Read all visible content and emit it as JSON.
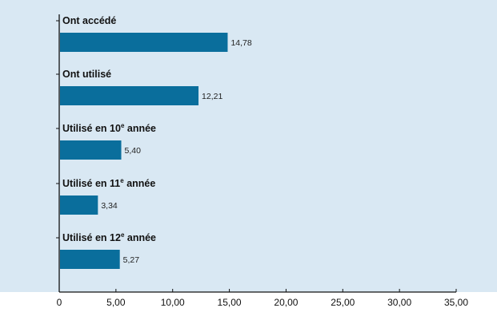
{
  "chart_data": {
    "type": "bar",
    "orientation": "horizontal",
    "title": "",
    "xlabel": "",
    "ylabel": "",
    "categories": [
      {
        "text": "Ont accédé",
        "sup": "",
        "rest": ""
      },
      {
        "text": "Ont utilisé",
        "sup": "",
        "rest": ""
      },
      {
        "text": "Utilisé en 10",
        "sup": "e",
        "rest": " année"
      },
      {
        "text": "Utilisé en 11",
        "sup": "e",
        "rest": " année"
      },
      {
        "text": "Utilisé en 12",
        "sup": "e",
        "rest": " année"
      }
    ],
    "values": [
      14.78,
      12.21,
      5.4,
      3.34,
      5.27
    ],
    "value_labels": [
      "14,78",
      "12,21",
      "5,40",
      "3,34",
      "5,27"
    ],
    "xlim": [
      0,
      35
    ],
    "x_ticks": [
      0,
      5,
      10,
      15,
      20,
      25,
      30,
      35
    ],
    "x_tick_labels": [
      "0",
      "5,00",
      "10,00",
      "15,00",
      "20,00",
      "25,00",
      "30,00",
      "35,00"
    ],
    "grid": false,
    "legend": "none",
    "colors": {
      "background": "#d9e8f3",
      "bar": "#0a6e9c",
      "axis": "#111111"
    }
  }
}
